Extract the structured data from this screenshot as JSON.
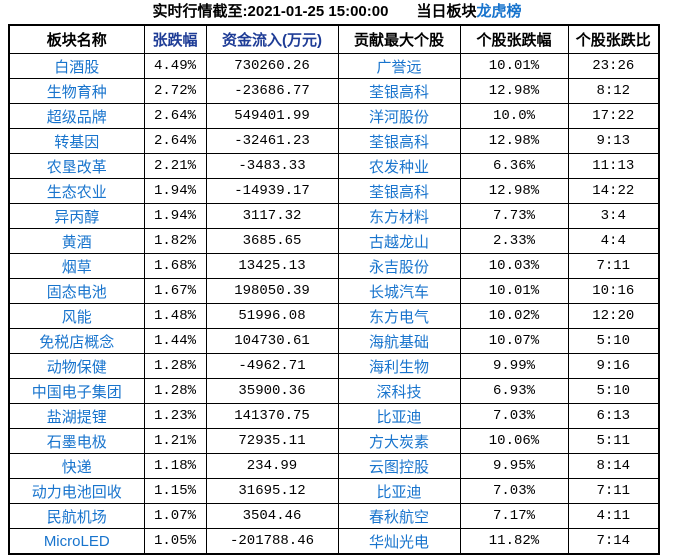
{
  "title": {
    "timestamp_label": "实时行情截至:2021-01-25 15:00:00",
    "section_label": "当日板块",
    "link_label": "龙虎榜"
  },
  "colors": {
    "header_blue": "#1e3c96",
    "name_blue": "#1874cd",
    "text_black": "#000000",
    "border_black": "#000000",
    "background": "#ffffff"
  },
  "table": {
    "headers": [
      "板块名称",
      "张跌幅",
      "资金流入(万元)",
      "贡献最大个股",
      "个股张跌幅",
      "个股张跌比"
    ],
    "rows": [
      [
        "白酒股",
        "4.49%",
        "730260.26",
        "广誉远",
        "10.01%",
        "23:26"
      ],
      [
        "生物育种",
        "2.72%",
        "-23686.77",
        "荃银高科",
        "12.98%",
        "8:12"
      ],
      [
        "超级品牌",
        "2.64%",
        "549401.99",
        "洋河股份",
        "10.0%",
        "17:22"
      ],
      [
        "转基因",
        "2.64%",
        "-32461.23",
        "荃银高科",
        "12.98%",
        "9:13"
      ],
      [
        "农垦改革",
        "2.21%",
        "-3483.33",
        "农发种业",
        "6.36%",
        "11:13"
      ],
      [
        "生态农业",
        "1.94%",
        "-14939.17",
        "荃银高科",
        "12.98%",
        "14:22"
      ],
      [
        "异丙醇",
        "1.94%",
        "3117.32",
        "东方材料",
        "7.73%",
        "3:4"
      ],
      [
        "黄酒",
        "1.82%",
        "3685.65",
        "古越龙山",
        "2.33%",
        "4:4"
      ],
      [
        "烟草",
        "1.68%",
        "13425.13",
        "永吉股份",
        "10.03%",
        "7:11"
      ],
      [
        "固态电池",
        "1.67%",
        "198050.39",
        "长城汽车",
        "10.01%",
        "10:16"
      ],
      [
        "风能",
        "1.48%",
        "51996.08",
        "东方电气",
        "10.02%",
        "12:20"
      ],
      [
        "免税店概念",
        "1.44%",
        "104730.61",
        "海航基础",
        "10.07%",
        "5:10"
      ],
      [
        "动物保健",
        "1.28%",
        "-4962.71",
        "海利生物",
        "9.99%",
        "9:16"
      ],
      [
        "中国电子集团",
        "1.28%",
        "35900.36",
        "深科技",
        "6.93%",
        "5:10"
      ],
      [
        "盐湖提锂",
        "1.23%",
        "141370.75",
        "比亚迪",
        "7.03%",
        "6:13"
      ],
      [
        "石墨电极",
        "1.21%",
        "72935.11",
        "方大炭素",
        "10.06%",
        "5:11"
      ],
      [
        "快递",
        "1.18%",
        "234.99",
        "云图控股",
        "9.95%",
        "8:14"
      ],
      [
        "动力电池回收",
        "1.15%",
        "31695.12",
        "比亚迪",
        "7.03%",
        "7:11"
      ],
      [
        "民航机场",
        "1.07%",
        "3504.46",
        "春秋航空",
        "7.17%",
        "4:11"
      ],
      [
        "MicroLED",
        "1.05%",
        "-201788.46",
        "华灿光电",
        "11.82%",
        "7:14"
      ]
    ]
  }
}
